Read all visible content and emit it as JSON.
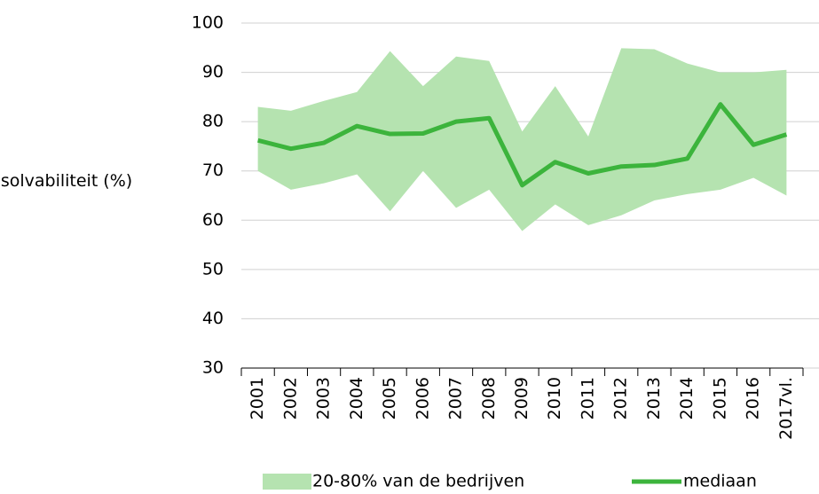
{
  "chart_data": {
    "type": "line",
    "y_label": "solvabiliteit (%)",
    "categories": [
      "2001",
      "2002",
      "2003",
      "2004",
      "2005",
      "2006",
      "2007",
      "2008",
      "2009",
      "2010",
      "2011",
      "2012",
      "2013",
      "2014",
      "2015",
      "2016",
      "2017vl."
    ],
    "ylim": [
      30,
      100
    ],
    "yticks": [
      30,
      40,
      50,
      60,
      70,
      80,
      90,
      100
    ],
    "grid": true,
    "series": [
      {
        "name": "20-80% van de bedrijven",
        "color": "#b5e3b0",
        "low": [
          70,
          66.2,
          67.5,
          69.3,
          61.8,
          70,
          62.5,
          66.2,
          57.8,
          63.2,
          59,
          61,
          64,
          65.3,
          66.2,
          68.6,
          65
        ],
        "high": [
          83,
          82.2,
          84.2,
          86,
          94.3,
          87.2,
          93.2,
          92.3,
          78,
          87.2,
          77,
          94.9,
          94.7,
          91.8,
          90,
          90,
          90.5
        ]
      },
      {
        "name": "mediaan",
        "color": "#3cb43c",
        "values": [
          76.2,
          74.5,
          75.7,
          79.1,
          77.5,
          77.6,
          80,
          80.7,
          67.1,
          71.8,
          69.5,
          70.9,
          71.2,
          72.5,
          83.5,
          75.3,
          77.4
        ]
      }
    ]
  }
}
